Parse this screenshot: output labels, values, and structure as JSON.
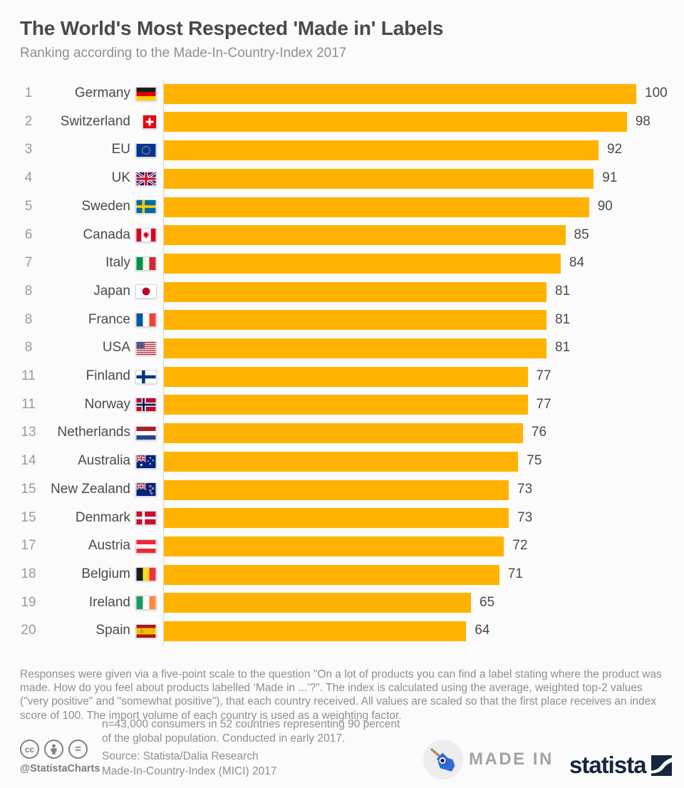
{
  "header": {
    "title": "The World's Most Respected 'Made in' Labels",
    "subtitle": "Ranking according to the Made-In-Country-Index 2017"
  },
  "chart_data": {
    "type": "bar",
    "orientation": "horizontal",
    "title": "The World's Most Respected 'Made in' Labels",
    "subtitle": "Ranking according to the Made-In-Country-Index 2017",
    "xlabel": "",
    "ylabel": "",
    "xlim": [
      0,
      100
    ],
    "grid": false,
    "bar_color": "#FFB300",
    "categories": [
      "Germany",
      "Switzerland",
      "EU",
      "UK",
      "Sweden",
      "Canada",
      "Italy",
      "Japan",
      "France",
      "USA",
      "Finland",
      "Norway",
      "Netherlands",
      "Australia",
      "New Zealand",
      "Denmark",
      "Austria",
      "Belgium",
      "Ireland",
      "Spain"
    ],
    "values": [
      100,
      98,
      92,
      91,
      90,
      85,
      84,
      81,
      81,
      81,
      77,
      77,
      76,
      75,
      73,
      73,
      72,
      71,
      65,
      64
    ],
    "rows": [
      {
        "rank": "1",
        "country": "Germany",
        "flag": "flag-germany",
        "value": 100
      },
      {
        "rank": "2",
        "country": "Switzerland",
        "flag": "flag-switzerland",
        "value": 98
      },
      {
        "rank": "3",
        "country": "EU",
        "flag": "flag-eu",
        "value": 92
      },
      {
        "rank": "4",
        "country": "UK",
        "flag": "flag-uk",
        "value": 91
      },
      {
        "rank": "5",
        "country": "Sweden",
        "flag": "flag-sweden",
        "value": 90
      },
      {
        "rank": "6",
        "country": "Canada",
        "flag": "flag-canada",
        "value": 85
      },
      {
        "rank": "7",
        "country": "Italy",
        "flag": "flag-italy",
        "value": 84
      },
      {
        "rank": "8",
        "country": "Japan",
        "flag": "flag-japan",
        "value": 81
      },
      {
        "rank": "8",
        "country": "France",
        "flag": "flag-france",
        "value": 81
      },
      {
        "rank": "8",
        "country": "USA",
        "flag": "flag-usa",
        "value": 81
      },
      {
        "rank": "11",
        "country": "Finland",
        "flag": "flag-finland",
        "value": 77
      },
      {
        "rank": "11",
        "country": "Norway",
        "flag": "flag-norway",
        "value": 77
      },
      {
        "rank": "13",
        "country": "Netherlands",
        "flag": "flag-netherlands",
        "value": 76
      },
      {
        "rank": "14",
        "country": "Australia",
        "flag": "flag-australia",
        "value": 75
      },
      {
        "rank": "15",
        "country": "New Zealand",
        "flag": "flag-new-zealand",
        "value": 73
      },
      {
        "rank": "15",
        "country": "Denmark",
        "flag": "flag-denmark",
        "value": 73
      },
      {
        "rank": "17",
        "country": "Austria",
        "flag": "flag-austria",
        "value": 72
      },
      {
        "rank": "18",
        "country": "Belgium",
        "flag": "flag-belgium",
        "value": 71
      },
      {
        "rank": "19",
        "country": "Ireland",
        "flag": "flag-ireland",
        "value": 65
      },
      {
        "rank": "20",
        "country": "Spain",
        "flag": "flag-spain",
        "value": 64
      }
    ]
  },
  "footer": {
    "methodology": "Responses were given via a five-point scale to the question \"On a lot of products you can find a label stating where the product was made. How do you feel about products labelled ‘Made in ...’?\". The index is calculated using the average, weighted top-2 values (\"very positive\" and \"somewhat positive\"), that each country received. All values are scaled so that the first place receives an index score of 100. The import volume of each country is used as a weighting factor.",
    "sample_note": "n=43,000 consumers in 52 countries representing 90 percent of the global population. Conducted in early 2017.",
    "source_line1": "Source: Statista/Dalia Research",
    "source_line2": "Made-In-Country-Index (MICI) 2017",
    "credit": "@StatistaCharts",
    "made_in_label": "MADE IN",
    "statista_label": "statista"
  },
  "colors": {
    "background": "#FBFBFB",
    "bar": "#FFB300",
    "title_text": "#4A4A4A",
    "muted_text": "#8F8F8F",
    "statista_navy": "#16263E",
    "tag_blue": "#2E6BD8"
  }
}
